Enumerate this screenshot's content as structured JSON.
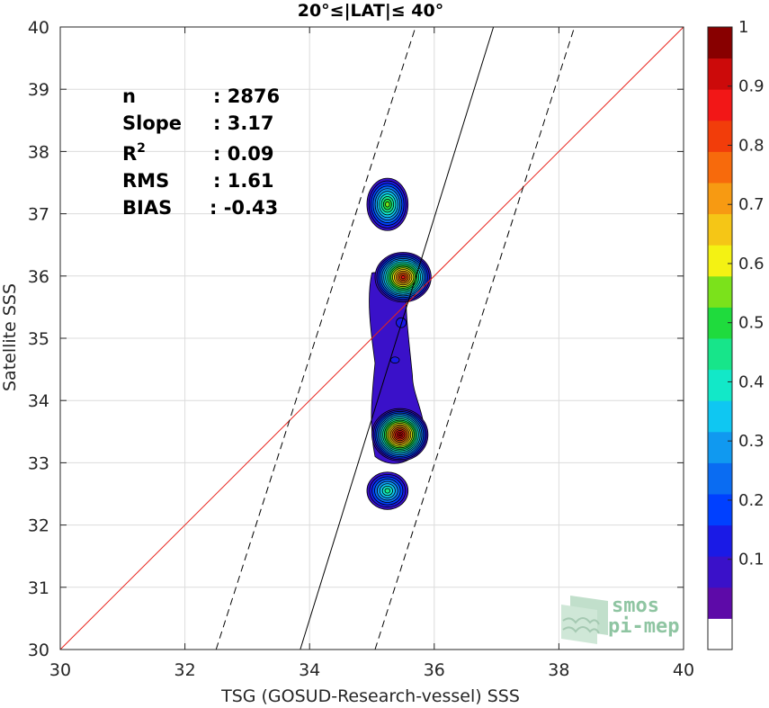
{
  "chart_data": {
    "type": "contour-scatter",
    "title": "20°≤|LAT|≤ 40°",
    "xlabel": "TSG (GOSUD-Research-vessel) SSS",
    "ylabel": "Satellite SSS",
    "xlim": [
      30,
      40
    ],
    "ylim": [
      30,
      40
    ],
    "xticks": [
      "30",
      "32",
      "34",
      "36",
      "38",
      "40"
    ],
    "yticks": [
      "30",
      "31",
      "32",
      "33",
      "34",
      "35",
      "36",
      "37",
      "38",
      "39",
      "40"
    ],
    "grid": true,
    "stats": [
      {
        "label": "n",
        "value": ": 2876"
      },
      {
        "label": "Slope",
        "value": ": 3.17"
      },
      {
        "label": "R",
        "sup": "2",
        "value": ": 0.09"
      },
      {
        "label": "RMS",
        "value": ": 1.61"
      },
      {
        "label": "BIAS",
        "value": ": -0.43"
      }
    ],
    "reference_lines": [
      {
        "kind": "one-to-one",
        "color": "#e8231c",
        "points": [
          [
            30,
            30
          ],
          [
            40,
            40
          ]
        ]
      },
      {
        "kind": "regression",
        "style": "solid",
        "color": "#000000",
        "points": [
          [
            33.85,
            30
          ],
          [
            36.95,
            40
          ]
        ]
      },
      {
        "kind": "bound",
        "style": "dashed",
        "color": "#000000",
        "points": [
          [
            32.5,
            30
          ],
          [
            35.7,
            40
          ]
        ]
      },
      {
        "kind": "bound",
        "style": "dashed",
        "color": "#000000",
        "points": [
          [
            35.05,
            30
          ],
          [
            38.25,
            40
          ]
        ]
      }
    ],
    "density_blobs": [
      {
        "name": "blob-37.2",
        "cx": 35.25,
        "cy": 37.15,
        "rx": 0.33,
        "ry": 0.42,
        "peak": 0.5
      },
      {
        "name": "blob-36.0",
        "cx": 35.5,
        "cy": 35.98,
        "rx": 0.45,
        "ry": 0.4,
        "peak": 0.85
      },
      {
        "name": "blob-33.5",
        "cx": 35.45,
        "cy": 33.45,
        "rx": 0.45,
        "ry": 0.42,
        "peak": 0.95
      },
      {
        "name": "blob-32.6",
        "cx": 35.25,
        "cy": 32.55,
        "rx": 0.33,
        "ry": 0.3,
        "peak": 0.4
      }
    ],
    "colorbar": {
      "ticks": [
        "0.1",
        "0.2",
        "0.3",
        "0.4",
        "0.5",
        "0.6",
        "0.7",
        "0.8",
        "0.9",
        "1"
      ],
      "colors": [
        "#ffffff",
        "#5d0aa8",
        "#3a11c9",
        "#1a1ae6",
        "#0040ff",
        "#0a6cf2",
        "#1099f0",
        "#0fc7f2",
        "#12e8c8",
        "#17e58a",
        "#1fdb3d",
        "#7be21b",
        "#f4f213",
        "#f5c616",
        "#f79a12",
        "#f76a0c",
        "#f23d0a",
        "#f21717",
        "#cc0a0a",
        "#880000"
      ]
    }
  },
  "logo": {
    "line1": "smos",
    "line2": "pi-mep"
  }
}
